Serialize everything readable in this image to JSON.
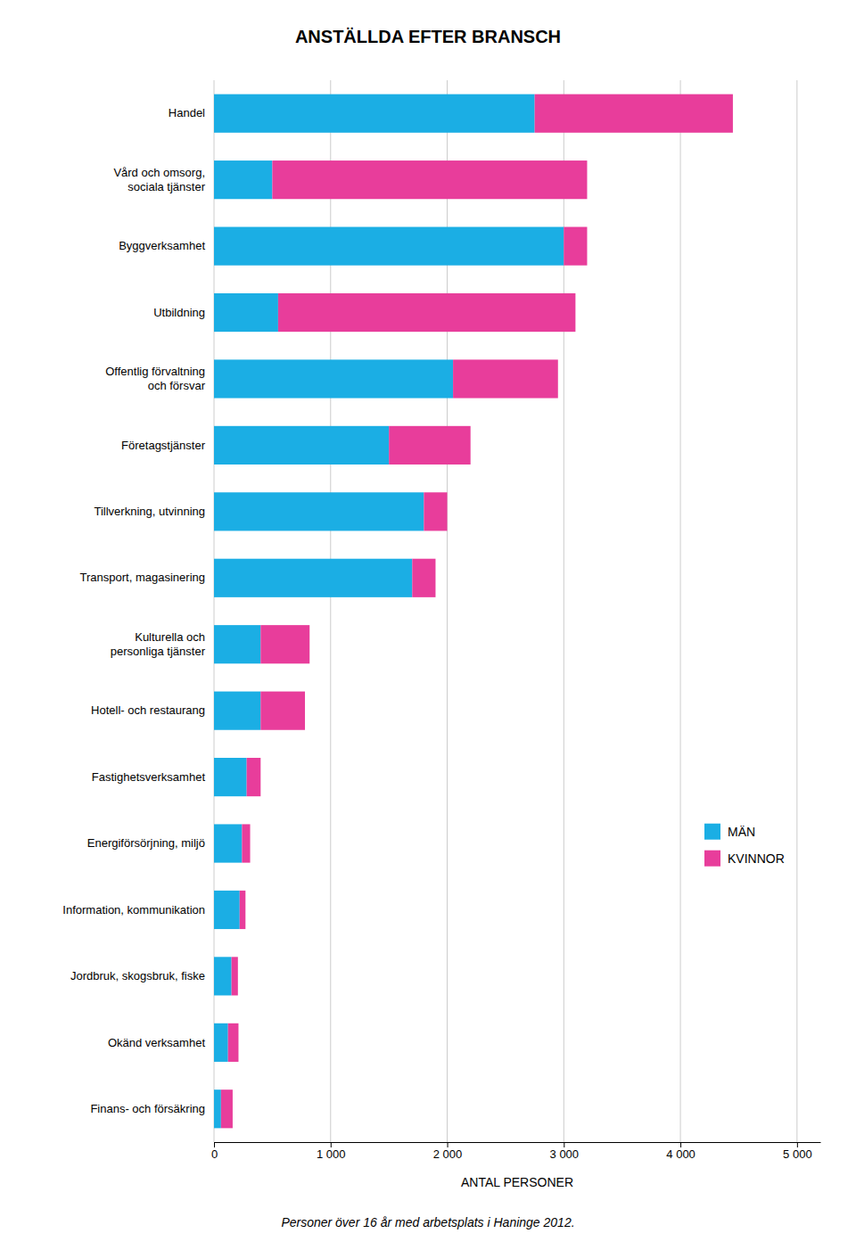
{
  "chart_data": {
    "type": "bar",
    "orientation": "horizontal",
    "stacked": true,
    "title": "ANSTÄLLDA EFTER BRANSCH",
    "subtitle": "Personer över 16 år med arbetsplats i Haninge 2012.",
    "xlabel": "ANTAL PERSONER",
    "categories": [
      "Handel",
      "Vård och omsorg,\nsociala tjänster",
      "Byggverksamhet",
      "Utbildning",
      "Offentlig förvaltning\noch försvar",
      "Företagstjänster",
      "Tillverkning, utvinning",
      "Transport, magasinering",
      "Kulturella och\npersonliga tjänster",
      "Hotell- och restaurang",
      "Fastighetsverksamhet",
      "Energiförsörjning, miljö",
      "Information, kommunikation",
      "Jordbruk, skogsbruk, fiske",
      "Okänd verksamhet",
      "Finans- och försäkring"
    ],
    "series": [
      {
        "name": "MÄN",
        "color": "#1baee4",
        "values": [
          2750,
          500,
          3000,
          550,
          2050,
          1500,
          1800,
          1700,
          400,
          400,
          280,
          240,
          220,
          150,
          120,
          60
        ]
      },
      {
        "name": "KVINNOR",
        "color": "#e83d9b",
        "values": [
          1700,
          2700,
          200,
          2550,
          900,
          700,
          200,
          200,
          420,
          380,
          120,
          70,
          50,
          55,
          90,
          100
        ]
      }
    ],
    "xlim": [
      0,
      5200
    ],
    "xticks": [
      0,
      {
        "value": 1000,
        "label": "1 000"
      },
      {
        "value": 2000,
        "label": "2 000"
      },
      {
        "value": 3000,
        "label": "3 000"
      },
      {
        "value": 4000,
        "label": "4 000"
      },
      {
        "value": 5000,
        "label": "5 000"
      }
    ],
    "grid": true,
    "legend": "lower right"
  }
}
